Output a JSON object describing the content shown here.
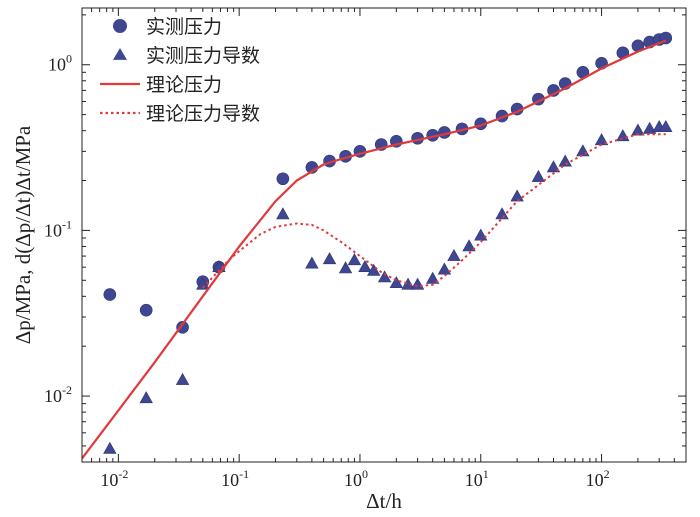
{
  "chart_data": {
    "type": "scatter",
    "title": "",
    "xlabel": "Δt/h",
    "ylabel": "Δp/MPa, d(Δp/Δt)Δt/MPa",
    "xscale": "log",
    "yscale": "log",
    "xlim": [
      0.005,
      500
    ],
    "ylim": [
      0.004,
      2.2
    ],
    "x_ticks": [
      {
        "value": 0.01,
        "base": "10",
        "exp": "-2"
      },
      {
        "value": 0.1,
        "base": "10",
        "exp": "-1"
      },
      {
        "value": 1,
        "base": "10",
        "exp": "0"
      },
      {
        "value": 10,
        "base": "10",
        "exp": "1"
      },
      {
        "value": 100,
        "base": "10",
        "exp": "2"
      }
    ],
    "y_ticks": [
      {
        "value": 0.01,
        "base": "10",
        "exp": "-2"
      },
      {
        "value": 0.1,
        "base": "10",
        "exp": "-1"
      },
      {
        "value": 1,
        "base": "10",
        "exp": "0"
      }
    ],
    "legend_position": "top-left",
    "series": [
      {
        "name": "实测压力",
        "marker": "circle",
        "color": "#3f4793",
        "x": [
          0.0085,
          0.017,
          0.034,
          0.05,
          0.068,
          0.23,
          0.4,
          0.56,
          0.76,
          1.0,
          1.5,
          2,
          3,
          4,
          5,
          7,
          10,
          15,
          20,
          30,
          40,
          50,
          70,
          100,
          150,
          200,
          250,
          300,
          340
        ],
        "y": [
          0.041,
          0.033,
          0.026,
          0.049,
          0.06,
          0.205,
          0.24,
          0.262,
          0.28,
          0.3,
          0.33,
          0.345,
          0.36,
          0.375,
          0.39,
          0.41,
          0.44,
          0.49,
          0.54,
          0.62,
          0.7,
          0.77,
          0.9,
          1.02,
          1.18,
          1.3,
          1.37,
          1.42,
          1.45
        ]
      },
      {
        "name": "实测压力导数",
        "marker": "triangle",
        "color": "#3f4793",
        "x": [
          0.0085,
          0.017,
          0.034,
          0.05,
          0.068,
          0.23,
          0.4,
          0.56,
          0.76,
          0.9,
          1.1,
          1.3,
          1.6,
          2.0,
          2.5,
          3.0,
          4.0,
          5.0,
          6.0,
          8.0,
          10,
          15,
          20,
          30,
          40,
          50,
          70,
          100,
          150,
          200,
          250,
          300,
          340
        ],
        "y": [
          0.0048,
          0.0097,
          0.0125,
          0.047,
          0.06,
          0.125,
          0.063,
          0.067,
          0.059,
          0.066,
          0.06,
          0.057,
          0.052,
          0.048,
          0.047,
          0.047,
          0.051,
          0.058,
          0.07,
          0.08,
          0.093,
          0.125,
          0.16,
          0.21,
          0.24,
          0.26,
          0.3,
          0.35,
          0.37,
          0.4,
          0.41,
          0.42,
          0.42
        ]
      },
      {
        "name": "理论压力",
        "marker": "line",
        "color": "#e03a3a",
        "x": [
          0.005,
          0.01,
          0.02,
          0.05,
          0.1,
          0.2,
          0.3,
          0.5,
          0.7,
          1.0,
          2,
          5,
          10,
          20,
          50,
          100,
          200,
          340
        ],
        "y": [
          0.0042,
          0.0082,
          0.016,
          0.04,
          0.08,
          0.15,
          0.2,
          0.25,
          0.27,
          0.29,
          0.33,
          0.38,
          0.43,
          0.52,
          0.72,
          0.95,
          1.2,
          1.4
        ]
      },
      {
        "name": "理论压力导数",
        "marker": "dotted",
        "color": "#e03a3a",
        "x": [
          0.05,
          0.08,
          0.1,
          0.15,
          0.2,
          0.3,
          0.4,
          0.5,
          0.7,
          1.0,
          1.5,
          2.0,
          3.0,
          4.0,
          5.0,
          7.0,
          10,
          20,
          50,
          100,
          200,
          340
        ],
        "y": [
          0.045,
          0.065,
          0.075,
          0.095,
          0.105,
          0.11,
          0.108,
          0.1,
          0.085,
          0.07,
          0.056,
          0.05,
          0.046,
          0.047,
          0.053,
          0.066,
          0.085,
          0.15,
          0.25,
          0.33,
          0.38,
          0.38
        ]
      }
    ]
  }
}
